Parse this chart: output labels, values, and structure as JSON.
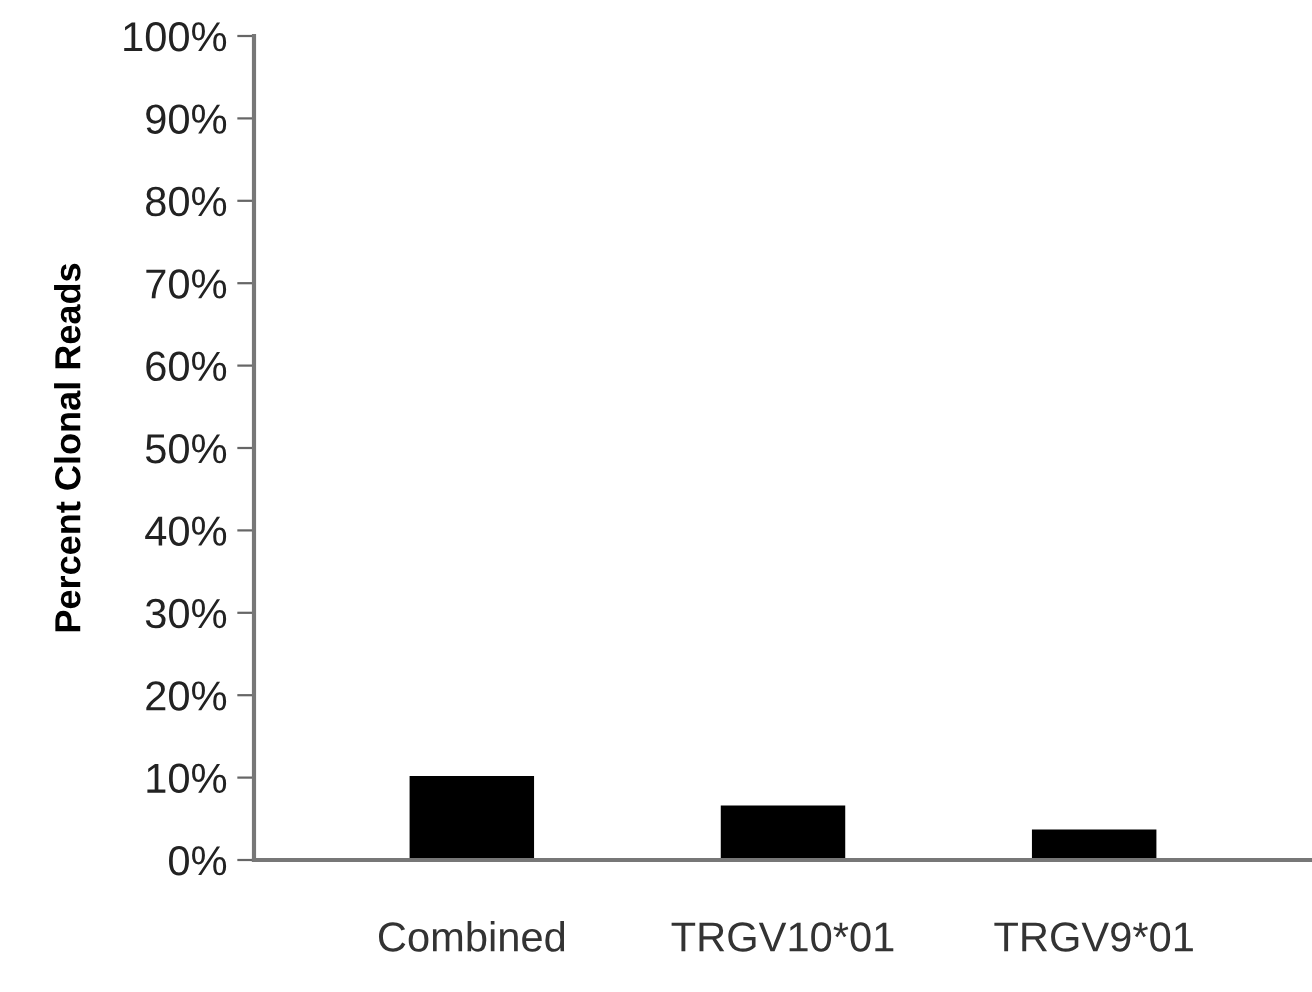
{
  "chart_data": {
    "type": "bar",
    "ylabel": "Percent Clonal Reads",
    "categories": [
      "Combined",
      "TRGV10*01",
      "TRGV9*01"
    ],
    "values": [
      10.2,
      6.6,
      3.7
    ],
    "color": "#000000",
    "ylim": [
      0,
      100
    ],
    "yticks": [
      {
        "value": 0,
        "label": "0%"
      },
      {
        "value": 10,
        "label": "10%"
      },
      {
        "value": 20,
        "label": "20%"
      },
      {
        "value": 30,
        "label": "30%"
      },
      {
        "value": 40,
        "label": "40%"
      },
      {
        "value": 50,
        "label": "50%"
      },
      {
        "value": 60,
        "label": "60%"
      },
      {
        "value": 70,
        "label": "70%"
      },
      {
        "value": 80,
        "label": "80%"
      },
      {
        "value": 90,
        "label": "90%"
      },
      {
        "value": 100,
        "label": "100%"
      }
    ],
    "grid": false,
    "legend": false
  }
}
